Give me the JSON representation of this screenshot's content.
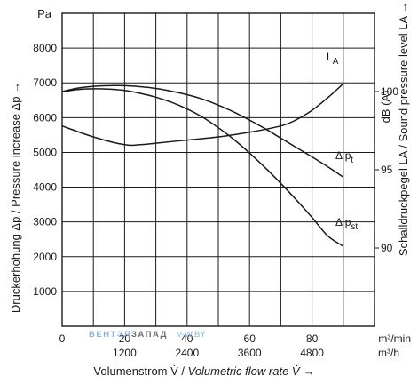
{
  "chart_data": {
    "type": "line",
    "y_unit": "Pa",
    "x_units": [
      "m³/min",
      "m³/h"
    ],
    "y_right_unit": "dB (A)",
    "ylim": [
      0,
      9000
    ],
    "xlim": [
      0,
      100
    ],
    "right_ylim": [
      85,
      105
    ],
    "grid": true,
    "x_ticks_primary": [
      "0",
      "20",
      "40",
      "60",
      "80"
    ],
    "x_ticks_secondary": [
      "1200",
      "2400",
      "3600",
      "4800"
    ],
    "y_ticks": [
      "1000",
      "2000",
      "3000",
      "4000",
      "5000",
      "6000",
      "7000",
      "8000"
    ],
    "y_right_ticks": [
      "90",
      "95",
      "100"
    ],
    "xlabel_de": "Volumenstrom V̇ / ",
    "xlabel_en": "Volumetric flow rate V̇",
    "xlabel_arrow": "→",
    "ylabel": "Druckerhöhung Δp / Pressure increase Δp  →",
    "ylabel_right": "Schalldruckpegel LA / Sound pressure level LA →",
    "series": [
      {
        "name": "Δ pt",
        "axis": "left",
        "x": [
          0,
          5,
          10,
          15,
          20,
          25,
          30,
          35,
          40,
          45,
          50,
          55,
          60,
          65,
          70,
          75,
          80,
          85,
          90
        ],
        "values": [
          6750,
          6850,
          6900,
          6920,
          6920,
          6890,
          6840,
          6760,
          6660,
          6530,
          6360,
          6160,
          5930,
          5680,
          5410,
          5140,
          4870,
          4590,
          4290
        ]
      },
      {
        "name": "Δ pst",
        "axis": "left",
        "x": [
          0,
          5,
          10,
          15,
          20,
          25,
          30,
          35,
          40,
          45,
          50,
          55,
          60,
          65,
          70,
          75,
          80,
          85,
          90
        ],
        "values": [
          6740,
          6810,
          6830,
          6820,
          6780,
          6700,
          6590,
          6440,
          6250,
          6010,
          5710,
          5370,
          4980,
          4560,
          4110,
          3630,
          3130,
          2600,
          2300
        ]
      },
      {
        "name": "LA",
        "axis": "right",
        "unit": "dB (A)",
        "x": [
          0,
          10,
          20,
          25,
          30,
          40,
          50,
          60,
          70,
          75,
          80,
          85,
          90
        ],
        "values": [
          97.8,
          97.1,
          96.6,
          96.6,
          96.7,
          96.9,
          97.1,
          97.4,
          97.8,
          98.2,
          98.8,
          99.6,
          100.5
        ]
      }
    ]
  },
  "watermark": {
    "part1": "ВЕНТЭЛ",
    "part2": "ЗАПАД",
    "part3": "V-W.BY",
    "color1": "#8fb3d9",
    "color2": "#6b6b6b"
  }
}
